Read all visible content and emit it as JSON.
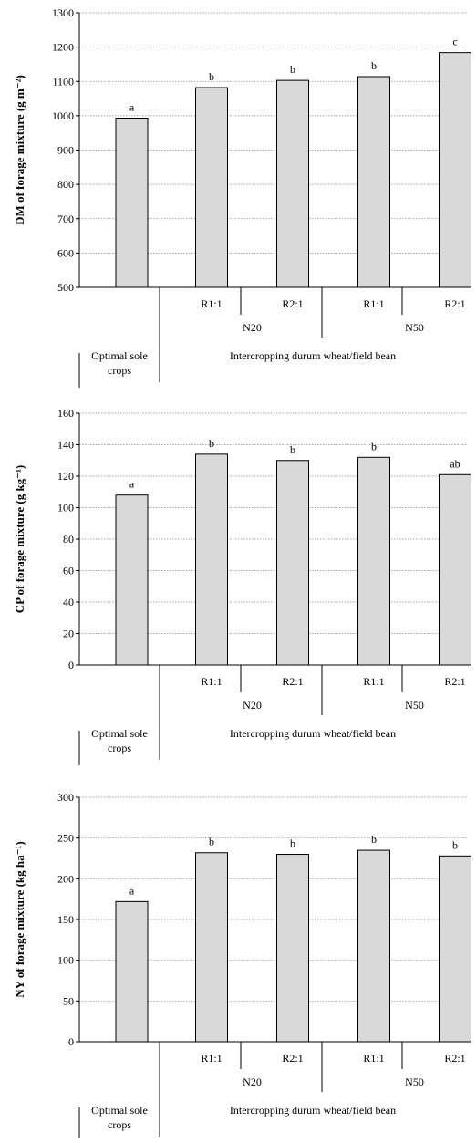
{
  "chart_data": [
    {
      "type": "bar",
      "ylabel": "DM of forage mixture (g m⁻²)",
      "ylim": [
        500,
        1300
      ],
      "yticks": [
        500,
        600,
        700,
        800,
        900,
        1000,
        1100,
        1200,
        1300
      ],
      "grid": true,
      "values": [
        993,
        1082,
        1103,
        1114,
        1184
      ],
      "letters": [
        "a",
        "b",
        "b",
        "b",
        "c"
      ]
    },
    {
      "type": "bar",
      "ylabel": "CP of forage mixture (g kg⁻¹)",
      "ylim": [
        0,
        160
      ],
      "yticks": [
        0,
        20,
        40,
        60,
        80,
        100,
        120,
        140,
        160
      ],
      "grid": true,
      "values": [
        108,
        134,
        130,
        132,
        121
      ],
      "letters": [
        "a",
        "b",
        "b",
        "b",
        "ab"
      ]
    },
    {
      "type": "bar",
      "ylabel": "NY of forage mixture (kg ha⁻¹)",
      "ylim": [
        0,
        300
      ],
      "yticks": [
        0,
        50,
        100,
        150,
        200,
        250,
        300
      ],
      "grid": true,
      "values": [
        172,
        232,
        230,
        235,
        228
      ],
      "letters": [
        "a",
        "b",
        "b",
        "b",
        "b"
      ]
    }
  ],
  "categories": {
    "ratios": [
      "R1:1",
      "R2:1",
      "R1:1",
      "R2:1"
    ],
    "n_levels": [
      "N20",
      "N50"
    ],
    "sole_label_line1": "Optimal sole",
    "sole_label_line2": "crops",
    "intercrop_label": "Intercropping durum wheat/field bean"
  },
  "colors": {
    "bar_fill": "#d9d9d9",
    "bar_stroke": "#000000",
    "grid": "#888888"
  }
}
